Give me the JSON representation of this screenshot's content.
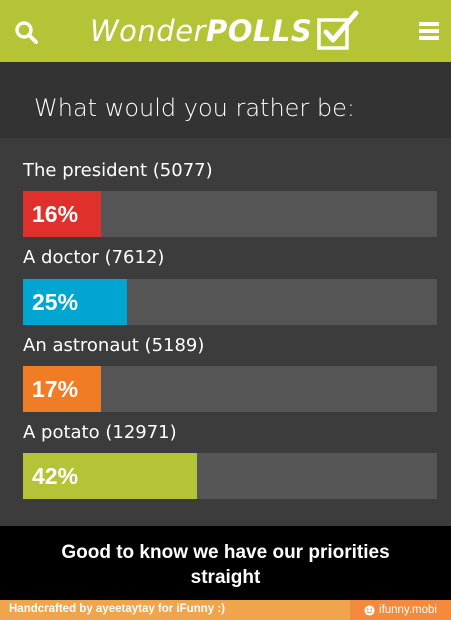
{
  "header": {
    "brand_light": "Wonder",
    "brand_bold": "POLLS",
    "search_icon": "search-icon",
    "menu_icon": "hamburger-menu-icon",
    "logo_icon": "checkbox-check-icon",
    "color": "#b5c337"
  },
  "poll": {
    "question": "What would you rather be:",
    "options": [
      {
        "label": "The president (5077)",
        "percent_text": "16%",
        "percent": 16,
        "color": "#e0302b"
      },
      {
        "label": "A doctor (7612)",
        "percent_text": "25%",
        "percent": 25,
        "color": "#00a6d1"
      },
      {
        "label": "An astronaut (5189)",
        "percent_text": "17%",
        "percent": 17,
        "color": "#f07c26"
      },
      {
        "label": "A potato (12971)",
        "percent_text": "42%",
        "percent": 42,
        "color": "#b5c337"
      }
    ]
  },
  "caption": {
    "line1": "Good to know we have our priorities",
    "line2": "straight"
  },
  "footer": {
    "left_text": "Handcrafted by ayeetaytay for iFunny :)",
    "right_text": "ifunny.mobi",
    "right_icon": "smiley-icon"
  }
}
